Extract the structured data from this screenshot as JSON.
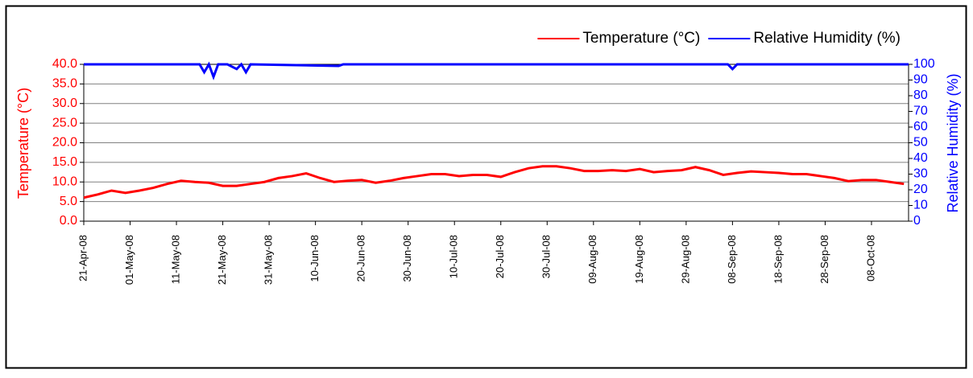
{
  "chart_data": {
    "type": "line",
    "legend": {
      "position": "top-right"
    },
    "grid": true,
    "y_label": "Temperature (°C)",
    "y2_label": "Relative Humidity (%)",
    "xlim": [
      "2008-04-21",
      "2008-10-16"
    ],
    "xticks": [
      {
        "value": "2008-04-21",
        "label": "21-Apr-08"
      },
      {
        "value": "2008-05-01",
        "label": "01-May-08"
      },
      {
        "value": "2008-05-11",
        "label": "11-May-08"
      },
      {
        "value": "2008-05-21",
        "label": "21-May-08"
      },
      {
        "value": "2008-05-31",
        "label": "31-May-08"
      },
      {
        "value": "2008-06-10",
        "label": "10-Jun-08"
      },
      {
        "value": "2008-06-20",
        "label": "20-Jun-08"
      },
      {
        "value": "2008-06-30",
        "label": "30-Jun-08"
      },
      {
        "value": "2008-07-10",
        "label": "10-Jul-08"
      },
      {
        "value": "2008-07-20",
        "label": "20-Jul-08"
      },
      {
        "value": "2008-07-30",
        "label": "30-Jul-08"
      },
      {
        "value": "2008-08-09",
        "label": "09-Aug-08"
      },
      {
        "value": "2008-08-19",
        "label": "19-Aug-08"
      },
      {
        "value": "2008-08-29",
        "label": "29-Aug-08"
      },
      {
        "value": "2008-09-08",
        "label": "08-Sep-08"
      },
      {
        "value": "2008-09-18",
        "label": "18-Sep-08"
      },
      {
        "value": "2008-09-28",
        "label": "28-Sep-08"
      },
      {
        "value": "2008-10-08",
        "label": "08-Oct-08"
      }
    ],
    "ylim": [
      0,
      40
    ],
    "yticks": [
      {
        "value": 0,
        "label": "0.0"
      },
      {
        "value": 5,
        "label": "5.0"
      },
      {
        "value": 10,
        "label": "10.0"
      },
      {
        "value": 15,
        "label": "15.0"
      },
      {
        "value": 20,
        "label": "20.0"
      },
      {
        "value": 25,
        "label": "25.0"
      },
      {
        "value": 30,
        "label": "30.0"
      },
      {
        "value": 35,
        "label": "35.0"
      },
      {
        "value": 40,
        "label": "40.0"
      }
    ],
    "y2lim": [
      0,
      100
    ],
    "y2ticks": [
      0,
      10,
      20,
      30,
      40,
      50,
      60,
      70,
      80,
      90,
      100
    ],
    "series": [
      {
        "name": "Temperature (°C)",
        "color": "#ff0000",
        "x": [
          "2008-04-21",
          "2008-04-24",
          "2008-04-27",
          "2008-04-30",
          "2008-05-03",
          "2008-05-06",
          "2008-05-09",
          "2008-05-12",
          "2008-05-15",
          "2008-05-18",
          "2008-05-21",
          "2008-05-24",
          "2008-05-27",
          "2008-05-30",
          "2008-06-02",
          "2008-06-05",
          "2008-06-08",
          "2008-06-11",
          "2008-06-14",
          "2008-06-17",
          "2008-06-20",
          "2008-06-23",
          "2008-06-26",
          "2008-06-29",
          "2008-07-02",
          "2008-07-05",
          "2008-07-08",
          "2008-07-11",
          "2008-07-14",
          "2008-07-17",
          "2008-07-20",
          "2008-07-23",
          "2008-07-26",
          "2008-07-29",
          "2008-08-01",
          "2008-08-04",
          "2008-08-07",
          "2008-08-10",
          "2008-08-13",
          "2008-08-16",
          "2008-08-19",
          "2008-08-22",
          "2008-08-25",
          "2008-08-28",
          "2008-08-31",
          "2008-09-03",
          "2008-09-06",
          "2008-09-09",
          "2008-09-12",
          "2008-09-15",
          "2008-09-18",
          "2008-09-21",
          "2008-09-24",
          "2008-09-27",
          "2008-09-30",
          "2008-10-03",
          "2008-10-06",
          "2008-10-09",
          "2008-10-12",
          "2008-10-15"
        ],
        "values": [
          6.0,
          6.8,
          7.8,
          7.2,
          7.8,
          8.5,
          9.5,
          10.3,
          10.0,
          9.8,
          9.0,
          9.0,
          9.5,
          10.0,
          11.0,
          11.5,
          12.2,
          11.0,
          10.0,
          10.3,
          10.5,
          9.8,
          10.3,
          11.0,
          11.5,
          12.0,
          12.0,
          11.5,
          11.8,
          11.8,
          11.3,
          12.5,
          13.5,
          14.0,
          14.0,
          13.5,
          12.8,
          12.8,
          13.0,
          12.8,
          13.3,
          12.5,
          12.8,
          13.0,
          13.8,
          13.0,
          11.8,
          12.3,
          12.7,
          12.5,
          12.3,
          12.0,
          12.0,
          11.5,
          11.0,
          10.2,
          10.5,
          10.5,
          10.0,
          9.5
        ]
      },
      {
        "name": "Relative Humidity (%)",
        "color": "#0000ff",
        "axis": "y2",
        "x": [
          "2008-04-21",
          "2008-05-16",
          "2008-05-17",
          "2008-05-18",
          "2008-05-19",
          "2008-05-20",
          "2008-05-22",
          "2008-05-24",
          "2008-05-25",
          "2008-05-26",
          "2008-05-27",
          "2008-06-15",
          "2008-06-16",
          "2008-09-07",
          "2008-09-08",
          "2008-09-09",
          "2008-10-16"
        ],
        "values": [
          100,
          100,
          95,
          100,
          92,
          100,
          100,
          97,
          100,
          95,
          100,
          99,
          100,
          100,
          97,
          100,
          100
        ]
      }
    ]
  }
}
